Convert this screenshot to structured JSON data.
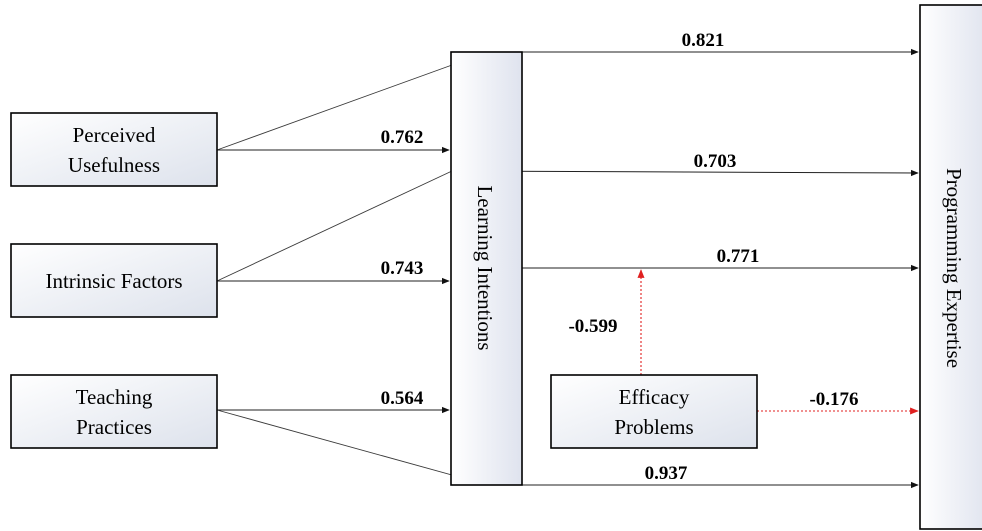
{
  "nodes": {
    "perceived_usefulness": [
      "Perceived",
      "Usefulness"
    ],
    "intrinsic_factors": [
      "Intrinsic Factors"
    ],
    "teaching_practices": [
      "Teaching",
      "Practices"
    ],
    "learning_intentions": "Learning Intentions",
    "efficacy_problems": [
      "Efficacy",
      "Problems"
    ],
    "programming_expertise": "Programming Expertise"
  },
  "coefficients": {
    "pu_to_li": "0.762",
    "if_to_li": "0.743",
    "tp_to_li": "0.564",
    "pu_to_pe": "0.821",
    "if_to_pe": "0.703",
    "li_to_pe": "0.771",
    "ep_to_li_pe": "-0.599",
    "ep_to_pe": "-0.176",
    "tp_to_pe": "0.937"
  },
  "colors": {
    "box_fill_light": "#ffffff",
    "box_fill_dark": "#dfe3ee",
    "box_border": "#000000",
    "line": "#3a3a3a",
    "moderator_arrow": "#e02020"
  }
}
